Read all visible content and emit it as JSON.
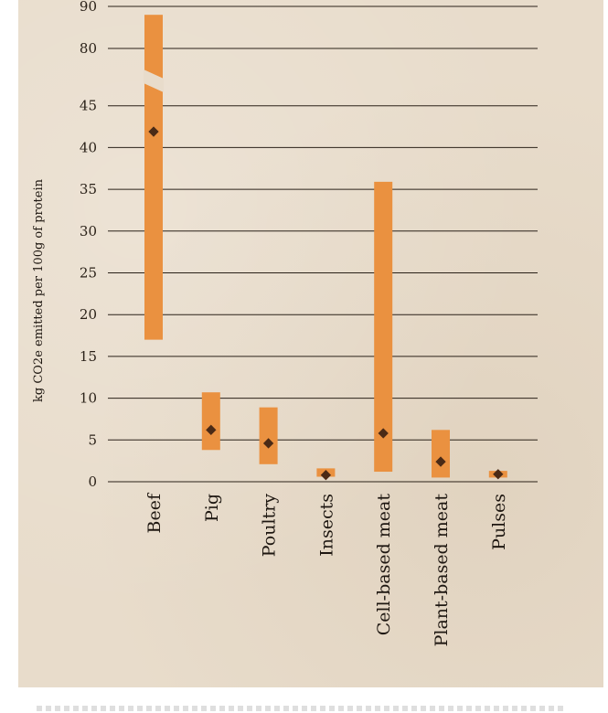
{
  "chart_data": {
    "type": "range",
    "ylabel": "kg CO2e emitted per 100g of protein",
    "y_ticks": [
      "0",
      "5",
      "10",
      "15",
      "20",
      "25",
      "30",
      "35",
      "40",
      "45",
      "80",
      "90"
    ],
    "axis_break": {
      "lower_top": 45,
      "upper_bottom": 80
    },
    "categories": [
      "Beef",
      "Pig",
      "Poultry",
      "Insects",
      "Cell-based meat",
      "Plant-based meat",
      "Pulses"
    ],
    "series": [
      {
        "low": [
          17.0,
          3.8,
          2.1,
          0.6,
          1.2,
          0.5,
          0.5
        ],
        "high": [
          88.0,
          10.7,
          8.9,
          1.6,
          35.9,
          6.2,
          1.3
        ],
        "median": [
          41.9,
          6.2,
          4.6,
          0.8,
          5.8,
          2.4,
          0.9
        ]
      }
    ],
    "colors": {
      "range": "#ea9140",
      "median": "#4a2a16",
      "background": "#e8dccb"
    },
    "grid": true
  }
}
